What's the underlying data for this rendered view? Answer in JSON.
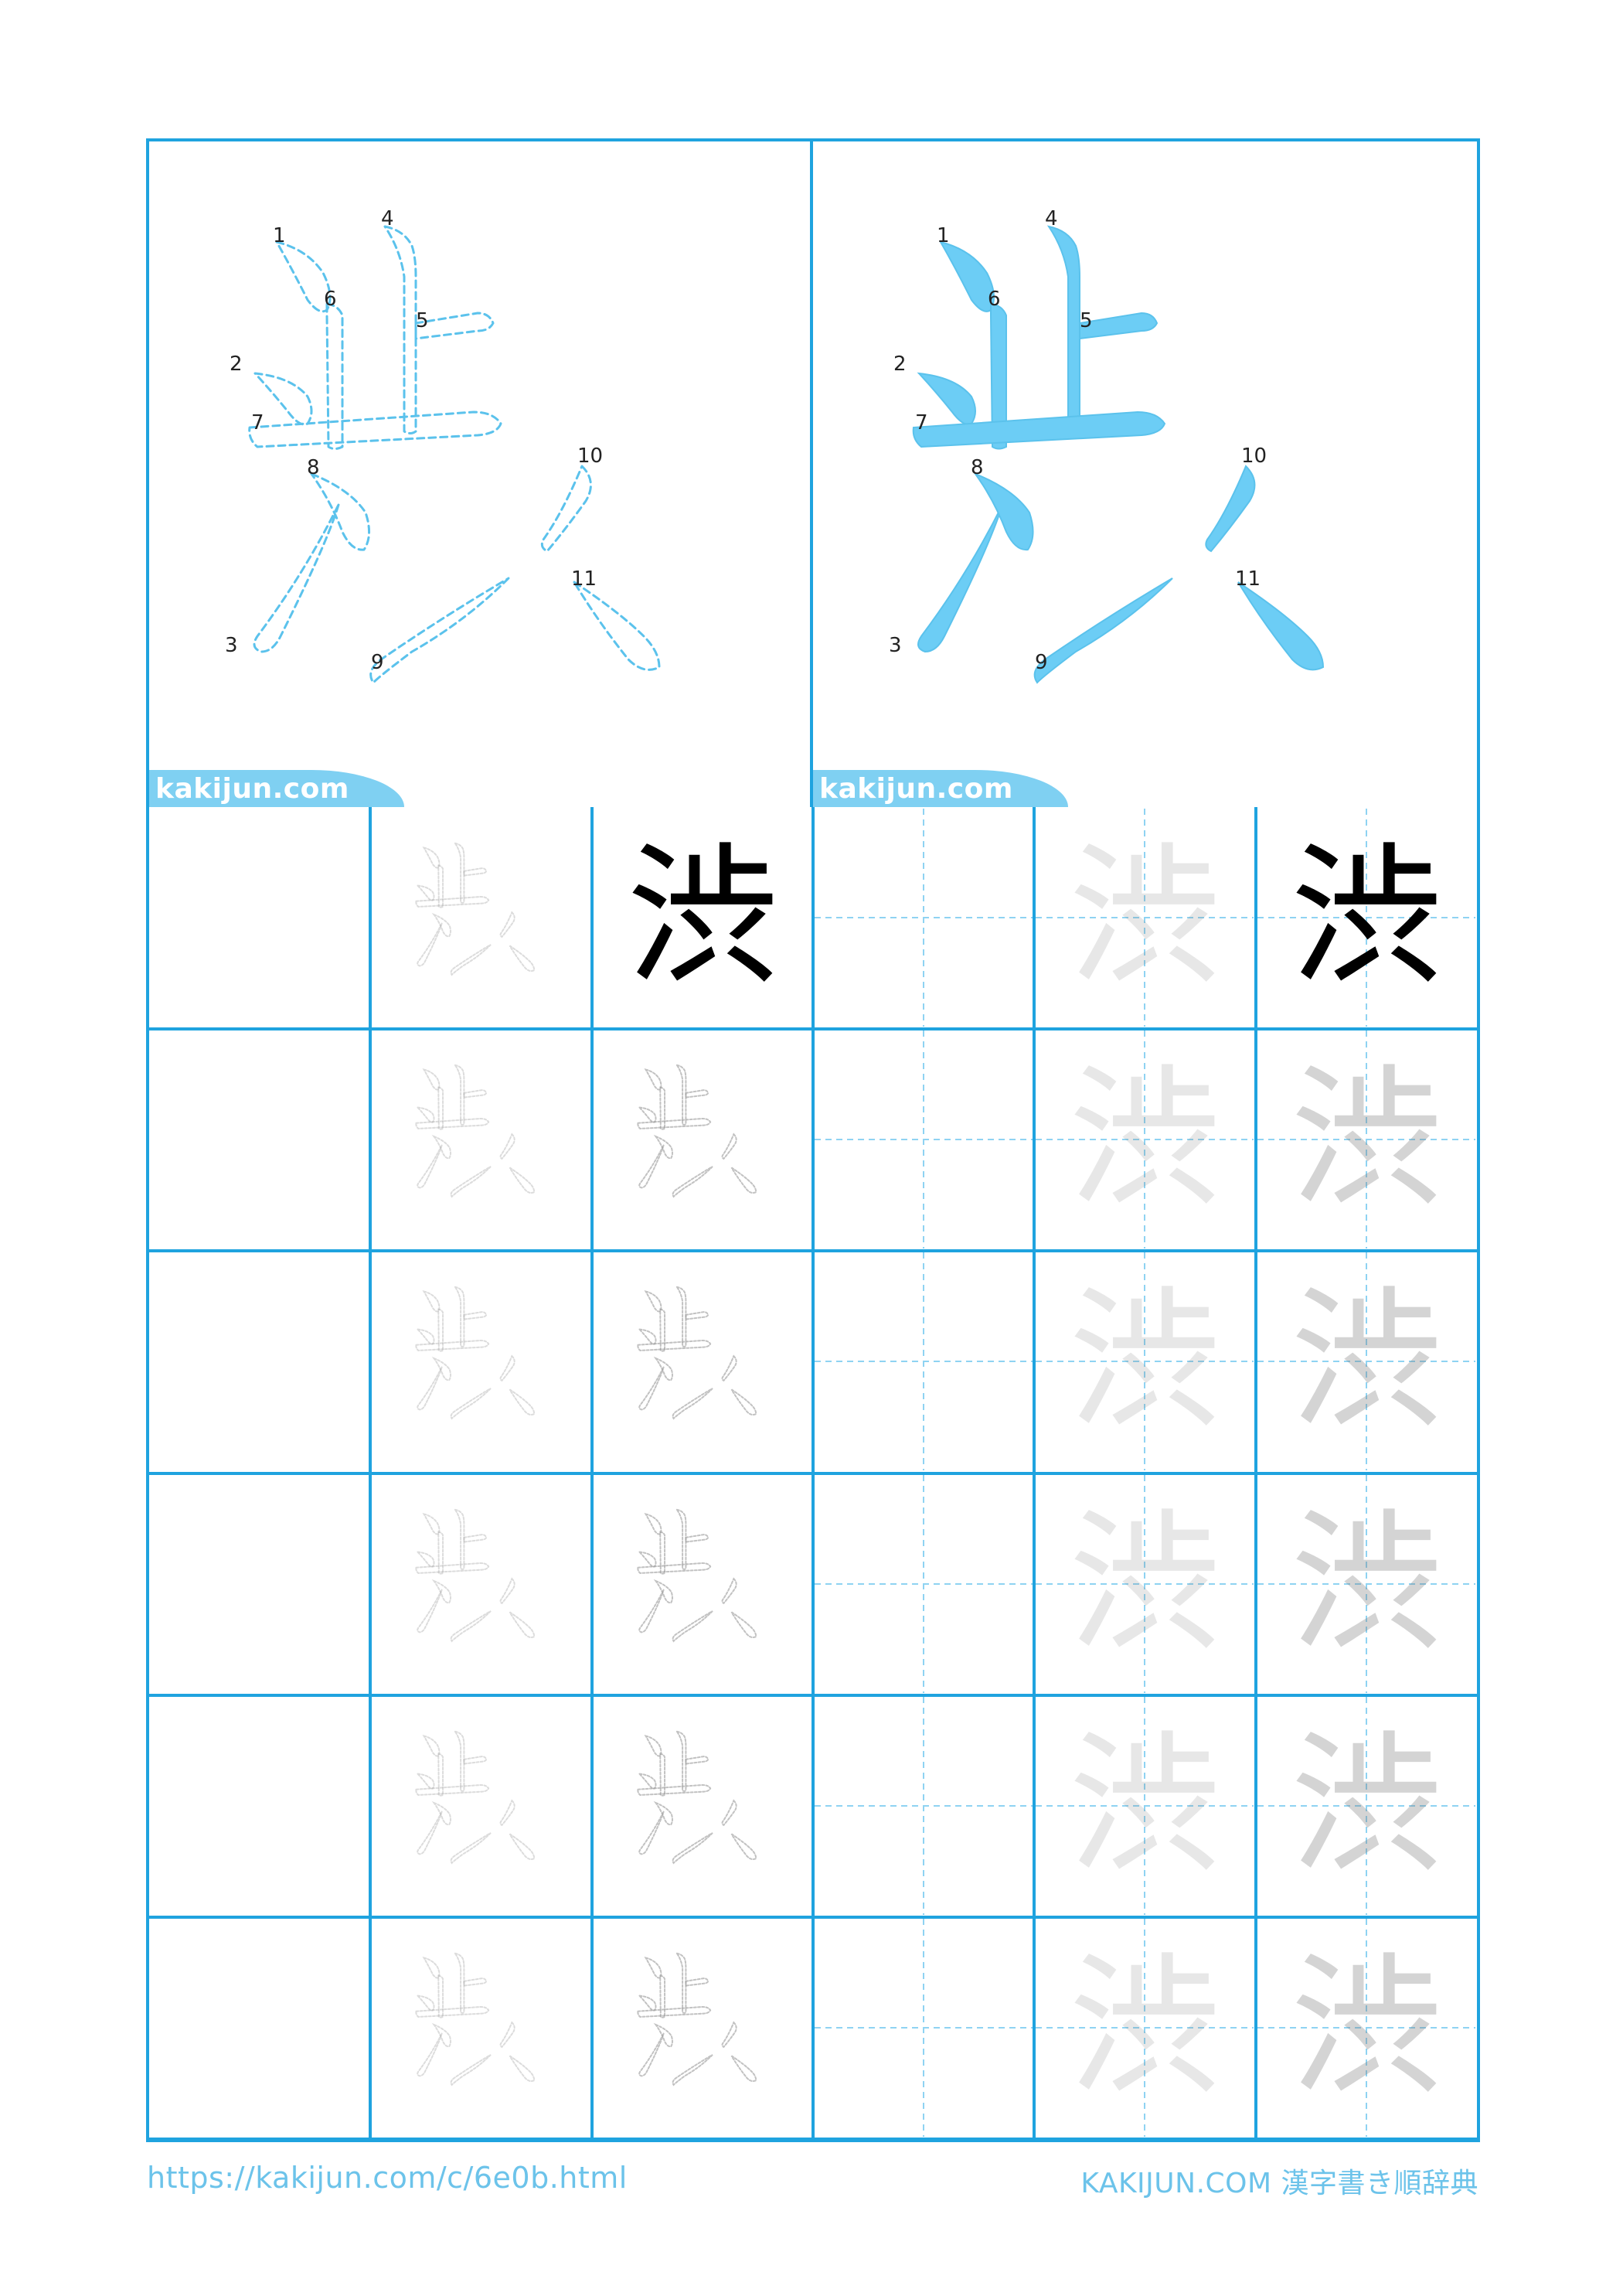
{
  "kanji": "渋",
  "stroke_count": 11,
  "stroke_numbers": [
    "1",
    "2",
    "3",
    "4",
    "5",
    "6",
    "7",
    "8",
    "9",
    "10",
    "11"
  ],
  "watermark": "kakijun.com",
  "footer": {
    "url": "https://kakijun.com/c/6e0b.html",
    "site": "KAKIJUN.COM 漢字書き順辞典"
  },
  "colors": {
    "grid": "#1fa3df",
    "stroke_fill": "#6ccdf5",
    "stroke_outline": "#5bc2ec",
    "guide": "#8fd3f2",
    "model_glyph": "#000000",
    "trace_gray": "#cfcfcf"
  },
  "practice": {
    "rows": 6,
    "left_half": "plain",
    "right_half": "cross-guides",
    "model_row": 1
  }
}
